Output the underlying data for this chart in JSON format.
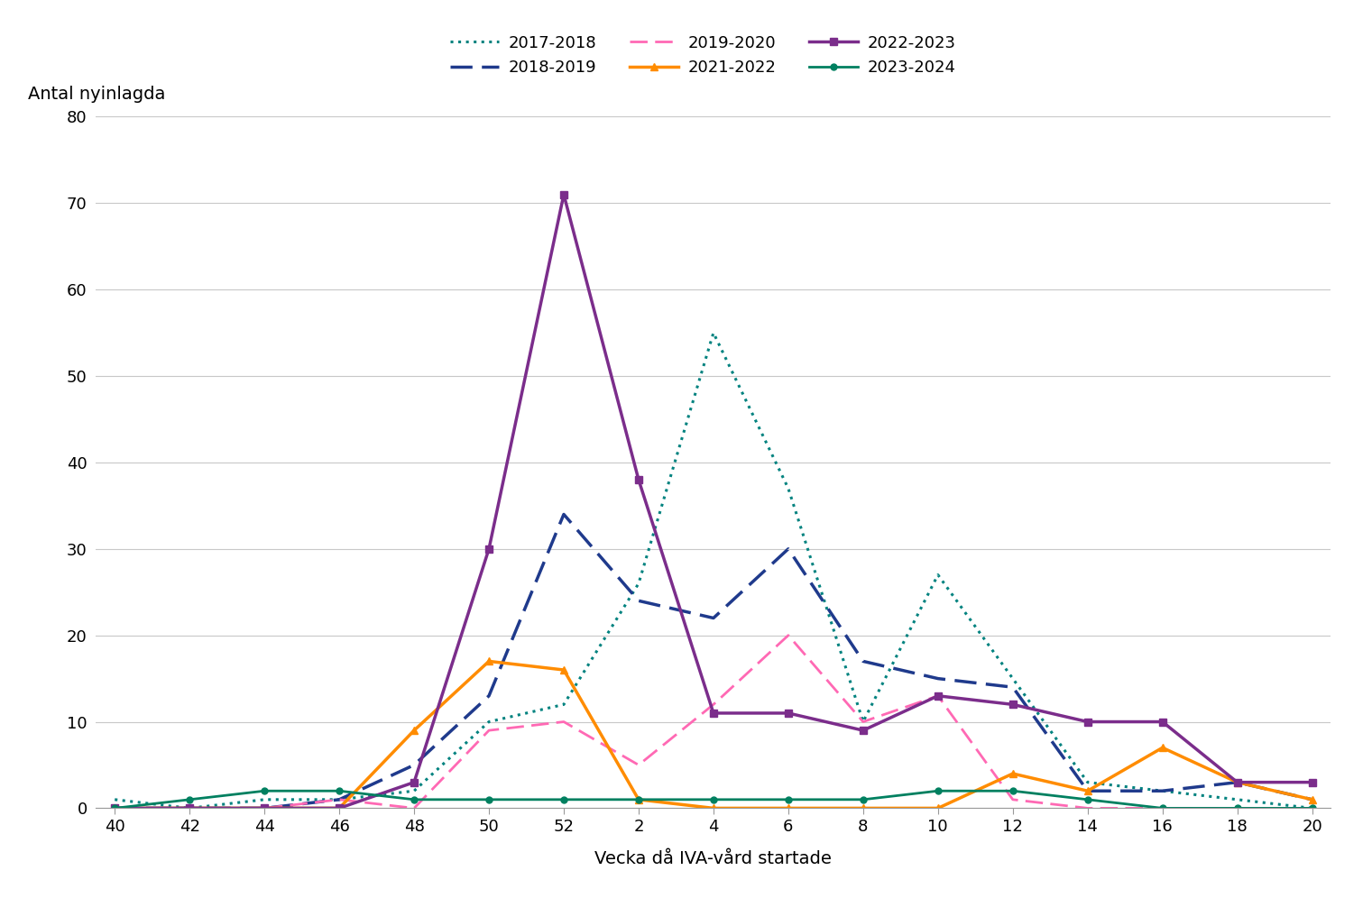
{
  "x_labels": [
    40,
    42,
    44,
    46,
    48,
    50,
    52,
    2,
    4,
    6,
    8,
    10,
    12,
    14,
    16,
    18,
    20
  ],
  "x_positions": [
    0,
    2,
    4,
    6,
    8,
    10,
    12,
    14,
    16,
    18,
    20,
    22,
    24,
    26,
    28,
    30,
    32
  ],
  "series": {
    "2017-2018": {
      "color": "#00827F",
      "linestyle": "dotted",
      "linewidth": 2.2,
      "marker": null,
      "values": [
        1,
        0,
        1,
        1,
        2,
        10,
        12,
        26,
        55,
        37,
        10,
        27,
        15,
        3,
        2,
        1,
        0
      ]
    },
    "2018-2019": {
      "color": "#1F3A8C",
      "linestyle": "dashed",
      "linewidth": 2.5,
      "marker": null,
      "values": [
        0,
        0,
        0,
        1,
        5,
        13,
        34,
        24,
        22,
        30,
        17,
        15,
        14,
        2,
        2,
        3,
        1
      ]
    },
    "2019-2020": {
      "color": "#FF69B4",
      "linestyle": "dashed",
      "linewidth": 2.0,
      "marker": null,
      "values": [
        0,
        0,
        0,
        1,
        0,
        9,
        10,
        5,
        12,
        20,
        10,
        13,
        1,
        0,
        0,
        0,
        0
      ]
    },
    "2021-2022": {
      "color": "#FF8C00",
      "linestyle": "solid",
      "linewidth": 2.5,
      "marker": "^",
      "markersize": 6,
      "values": [
        0,
        0,
        0,
        0,
        9,
        17,
        16,
        1,
        0,
        0,
        0,
        0,
        4,
        2,
        7,
        3,
        1
      ]
    },
    "2022-2023": {
      "color": "#7B2D8B",
      "linestyle": "solid",
      "linewidth": 2.5,
      "marker": "s",
      "markersize": 6,
      "values": [
        0,
        0,
        0,
        0,
        3,
        30,
        71,
        38,
        11,
        11,
        9,
        13,
        12,
        10,
        10,
        3,
        3
      ]
    },
    "2023-2024": {
      "color": "#008060",
      "linestyle": "solid",
      "linewidth": 2.0,
      "marker": "o",
      "markersize": 5,
      "values": [
        0,
        1,
        2,
        2,
        1,
        1,
        1,
        1,
        1,
        1,
        1,
        2,
        2,
        1,
        0,
        0,
        0
      ]
    }
  },
  "ylabel": "Antal nyinlagda",
  "xlabel": "Vecka då IVA-vård startade",
  "ylim": [
    0,
    80
  ],
  "yticks": [
    0,
    10,
    20,
    30,
    40,
    50,
    60,
    70,
    80
  ],
  "legend_order": [
    "2017-2018",
    "2018-2019",
    "2019-2020",
    "2021-2022",
    "2022-2023",
    "2023-2024"
  ]
}
